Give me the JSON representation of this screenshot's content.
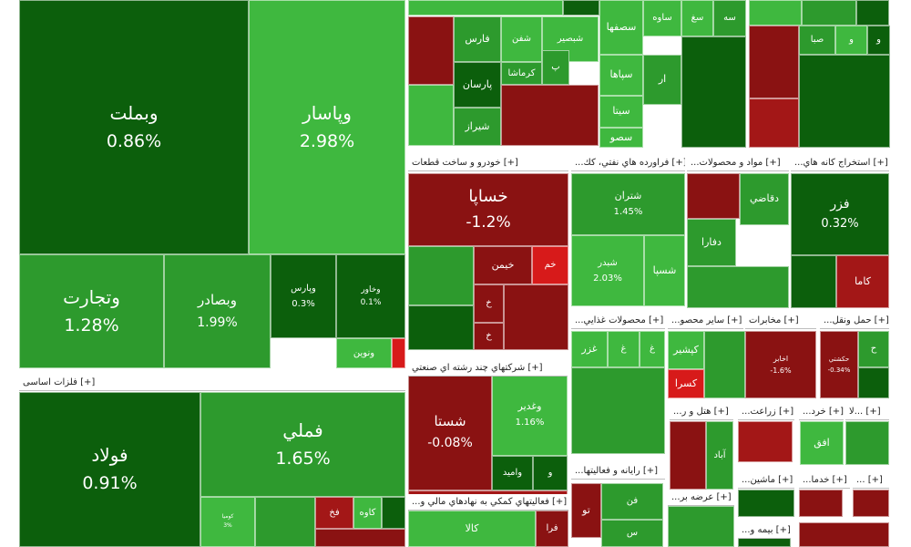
{
  "chart_data": {
    "type": "treemap",
    "color_scale": {
      "strong_up": "#0c5f0c",
      "up": "#2d9a2d",
      "light_up": "#3fb83f",
      "down": "#8a1212",
      "strong_down": "#a31717",
      "accent_red": "#d71a1a"
    },
    "sectors": [
      {
        "name": "",
        "tiles": [
          {
            "symbol": "وبملت",
            "change": "0.86%"
          },
          {
            "symbol": "وپاسار",
            "change": "2.98%"
          },
          {
            "symbol": "وتجارت",
            "change": "1.28%"
          },
          {
            "symbol": "وبصادر",
            "change": "1.99%"
          },
          {
            "symbol": "وپارس",
            "change": "0.3%"
          },
          {
            "symbol": "وخاور",
            "change": "0.1%"
          },
          {
            "symbol": "ونوين",
            "change": ""
          }
        ]
      },
      {
        "name": "فلزات اساسی",
        "label": "[+] فلزات اساسی",
        "tiles": [
          {
            "symbol": "فولاد",
            "change": "0.91%"
          },
          {
            "symbol": "فملي",
            "change": "1.65%"
          },
          {
            "symbol": "كاوه",
            "change": ""
          },
          {
            "symbol": "فخ",
            "change": ""
          },
          {
            "symbol": "كوميا",
            "change": "3%"
          }
        ]
      },
      {
        "name": "",
        "tiles": [
          {
            "symbol": "فارس",
            "change": ""
          },
          {
            "symbol": "شفن",
            "change": ""
          },
          {
            "symbol": "شبصير",
            "change": ""
          },
          {
            "symbol": "پ",
            "change": ""
          },
          {
            "symbol": "كرماشا",
            "change": ""
          },
          {
            "symbol": "پارسان",
            "change": ""
          },
          {
            "symbol": "شيراز",
            "change": ""
          },
          {
            "symbol": "سصفها",
            "change": ""
          },
          {
            "symbol": "ساوه",
            "change": ""
          },
          {
            "symbol": "سغ",
            "change": ""
          },
          {
            "symbol": "سه",
            "change": ""
          },
          {
            "symbol": "سپاها",
            "change": ""
          },
          {
            "symbol": "ار",
            "change": ""
          },
          {
            "symbol": "سيتا",
            "change": ""
          },
          {
            "symbol": "سصو",
            "change": ""
          },
          {
            "symbol": "صبا",
            "change": ""
          },
          {
            "symbol": "و",
            "change": ""
          },
          {
            "symbol": "و",
            "change": ""
          }
        ]
      },
      {
        "name": "خودرو و ساخت قطعات",
        "label": "[+] خودرو و ساخت قطعات",
        "tiles": [
          {
            "symbol": "خساپا",
            "change": "-1.2%"
          },
          {
            "symbol": "خيمن",
            "change": ""
          },
          {
            "symbol": "خم",
            "change": ""
          },
          {
            "symbol": "خ",
            "change": ""
          },
          {
            "symbol": "خ",
            "change": ""
          }
        ]
      },
      {
        "name": "فراورده هاي نفتي، كك",
        "label": "[+] فراورده هاي نفتي، كك...",
        "tiles": [
          {
            "symbol": "شتران",
            "change": "1.45%"
          },
          {
            "symbol": "شبدر",
            "change": "2.03%"
          },
          {
            "symbol": "شسپا",
            "change": ""
          }
        ]
      },
      {
        "name": "مواد و محصولات",
        "label": "[+] مواد و محصولات...",
        "tiles": [
          {
            "symbol": "دقاضي",
            "change": ""
          },
          {
            "symbol": "دفارا",
            "change": ""
          }
        ]
      },
      {
        "name": "استخراج كانه هاي",
        "label": "[+] استخراج كانه هاي...",
        "tiles": [
          {
            "symbol": "فزر",
            "change": "0.32%"
          },
          {
            "symbol": "كاما",
            "change": ""
          }
        ]
      },
      {
        "name": "شركتهاي چند رشته اي صنعتي",
        "label": "[+] شركتهاي چند رشته اي صنعتي",
        "tiles": [
          {
            "symbol": "شستا",
            "change": "-0.08%"
          },
          {
            "symbol": "وغدير",
            "change": "1.16%"
          },
          {
            "symbol": "واميد",
            "change": ""
          },
          {
            "symbol": "و",
            "change": ""
          }
        ]
      },
      {
        "name": "محصولات غذايي",
        "label": "[+] محصولات غذايي...",
        "tiles": [
          {
            "symbol": "غزر",
            "change": ""
          },
          {
            "symbol": "غ",
            "change": ""
          },
          {
            "symbol": "غ",
            "change": ""
          }
        ]
      },
      {
        "name": "ساير محصو",
        "label": "[+] ساير محصو...",
        "tiles": [
          {
            "symbol": "كپشير",
            "change": ""
          },
          {
            "symbol": "كسرا",
            "change": ""
          }
        ]
      },
      {
        "name": "مخابرات",
        "label": "[+] مخابرات",
        "tiles": [
          {
            "symbol": "اخابر",
            "change": "-1.6%"
          }
        ]
      },
      {
        "name": "حمل ونقل",
        "label": "[+] حمل ونقل...",
        "tiles": [
          {
            "symbol": "حكشتي",
            "change": "-0.34%"
          },
          {
            "symbol": "ح",
            "change": ""
          }
        ]
      },
      {
        "name": "هتل و ر",
        "label": "[+] هتل و ر...",
        "tiles": [
          {
            "symbol": "آباد",
            "change": ""
          }
        ]
      },
      {
        "name": "زراعت",
        "label": "[+] زراعت...",
        "tiles": []
      },
      {
        "name": "خرد",
        "label": "[+] خرد...",
        "tiles": [
          {
            "symbol": "افق",
            "change": ""
          }
        ]
      },
      {
        "name": "",
        "label": "[+] ...لا",
        "tiles": []
      },
      {
        "name": "رايانه و فعاليتها",
        "label": "[+] رايانه و فعاليتها...",
        "tiles": [
          {
            "symbol": "فن",
            "change": ""
          },
          {
            "symbol": "تو",
            "change": ""
          },
          {
            "symbol": "س",
            "change": ""
          }
        ]
      },
      {
        "name": "عرضه بر",
        "label": "[+] عرضه بر...",
        "tiles": []
      },
      {
        "name": "ماشين",
        "label": "[+] ماشين...",
        "tiles": []
      },
      {
        "name": "خدما",
        "label": "[+] خدما...",
        "tiles": []
      },
      {
        "name": "",
        "label": "[+] ...",
        "tiles": []
      },
      {
        "name": "بيمه و",
        "label": "[+] بيمه و...",
        "tiles": []
      },
      {
        "name": "فعاليتهاي كمكي به نهادهاي مالي و",
        "label": "[+] فعاليتهاي كمكي به نهادهاي مالي و...",
        "tiles": [
          {
            "symbol": "كالا",
            "change": ""
          },
          {
            "symbol": "فرا",
            "change": ""
          }
        ]
      }
    ]
  }
}
